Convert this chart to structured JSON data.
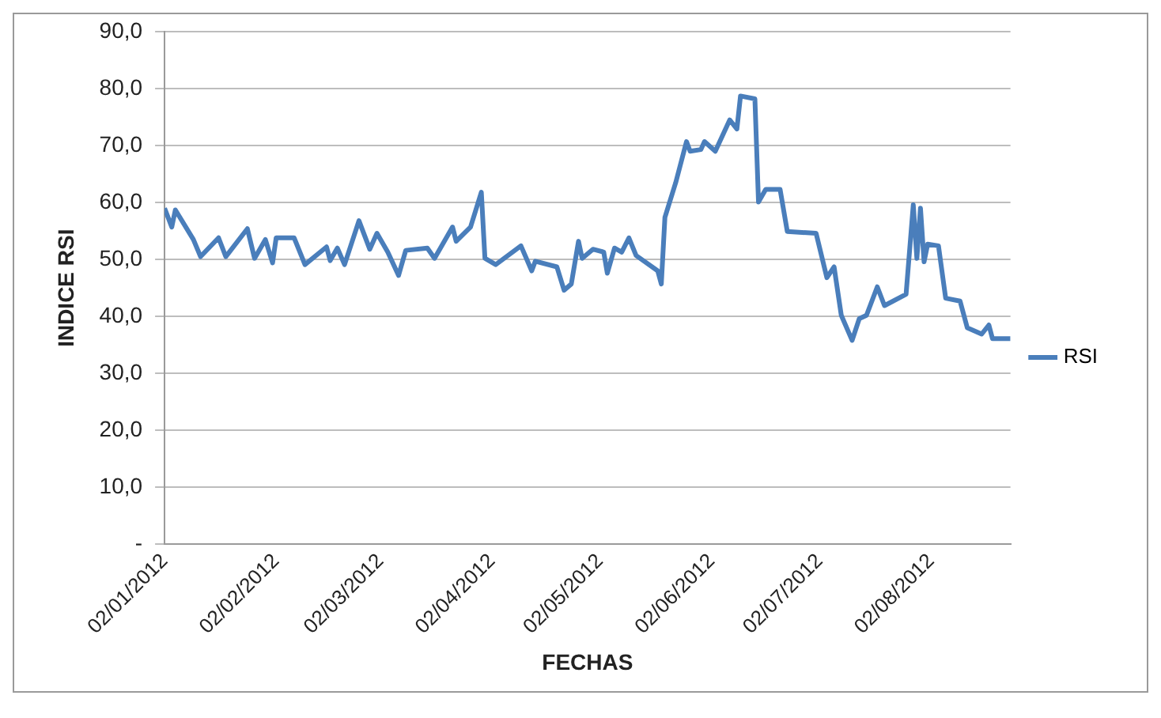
{
  "chart_data": {
    "type": "line",
    "xlabel": "FECHAS",
    "ylabel": "INDICE RSI",
    "x": [
      "2012-01-02",
      "2012-01-04",
      "2012-01-05",
      "2012-01-10",
      "2012-01-12",
      "2012-01-17",
      "2012-01-19",
      "2012-01-25",
      "2012-01-27",
      "2012-01-30",
      "2012-02-01",
      "2012-02-02",
      "2012-02-07",
      "2012-02-10",
      "2012-02-16",
      "2012-02-17",
      "2012-02-19",
      "2012-02-21",
      "2012-02-25",
      "2012-02-28",
      "2012-03-01",
      "2012-03-04",
      "2012-03-07",
      "2012-03-09",
      "2012-03-15",
      "2012-03-17",
      "2012-03-22",
      "2012-03-23",
      "2012-03-27",
      "2012-03-30",
      "2012-03-31",
      "2012-04-03",
      "2012-04-10",
      "2012-04-13",
      "2012-04-14",
      "2012-04-20",
      "2012-04-22",
      "2012-04-24",
      "2012-04-26",
      "2012-04-27",
      "2012-04-30",
      "2012-05-03",
      "2012-05-04",
      "2012-05-06",
      "2012-05-08",
      "2012-05-10",
      "2012-05-12",
      "2012-05-18",
      "2012-05-19",
      "2012-05-20",
      "2012-05-23",
      "2012-05-26",
      "2012-05-27",
      "2012-05-30",
      "2012-05-31",
      "2012-06-03",
      "2012-06-07",
      "2012-06-09",
      "2012-06-10",
      "2012-06-14",
      "2012-06-15",
      "2012-06-17",
      "2012-06-21",
      "2012-06-23",
      "2012-07-01",
      "2012-07-04",
      "2012-07-06",
      "2012-07-08",
      "2012-07-11",
      "2012-07-13",
      "2012-07-15",
      "2012-07-18",
      "2012-07-20",
      "2012-07-26",
      "2012-07-28",
      "2012-07-29",
      "2012-07-30",
      "2012-07-31",
      "2012-08-01",
      "2012-08-04",
      "2012-08-06",
      "2012-08-10",
      "2012-08-12",
      "2012-08-16",
      "2012-08-18",
      "2012-08-19",
      "2012-08-24"
    ],
    "series": [
      {
        "name": "RSI",
        "color": "#4a7ebb",
        "values": [
          59.0,
          55.7,
          58.7,
          53.5,
          50.5,
          53.8,
          50.5,
          55.4,
          50.2,
          53.5,
          49.4,
          53.8,
          53.8,
          49.1,
          52.2,
          49.8,
          52.0,
          49.1,
          56.8,
          51.8,
          54.6,
          51.3,
          47.2,
          51.6,
          52.0,
          50.2,
          55.7,
          53.2,
          55.7,
          61.8,
          50.2,
          49.1,
          52.4,
          48.0,
          49.7,
          48.7,
          44.6,
          45.7,
          53.2,
          50.2,
          51.8,
          51.3,
          47.6,
          52.0,
          51.3,
          53.8,
          50.7,
          48.0,
          45.7,
          57.4,
          63.5,
          70.7,
          69.0,
          69.3,
          70.7,
          69.0,
          74.5,
          72.9,
          78.7,
          78.2,
          60.1,
          62.3,
          62.3,
          54.9,
          54.6,
          46.8,
          48.7,
          40.2,
          35.8,
          39.6,
          40.2,
          45.2,
          41.9,
          43.9,
          59.6,
          50.2,
          59.0,
          49.6,
          52.7,
          52.4,
          43.2,
          42.7,
          38.0,
          36.9,
          38.5,
          36.1,
          36.1
        ]
      }
    ],
    "xlim": [
      "2012-01-02",
      "2012-08-24"
    ],
    "xticks": [
      {
        "value": "2012-01-02",
        "label": "02/01/2012"
      },
      {
        "value": "2012-02-02",
        "label": "02/02/2012"
      },
      {
        "value": "2012-03-02",
        "label": "02/03/2012"
      },
      {
        "value": "2012-04-02",
        "label": "02/04/2012"
      },
      {
        "value": "2012-05-02",
        "label": "02/05/2012"
      },
      {
        "value": "2012-06-02",
        "label": "02/06/2012"
      },
      {
        "value": "2012-07-02",
        "label": "02/07/2012"
      },
      {
        "value": "2012-08-02",
        "label": "02/08/2012"
      }
    ],
    "ylim": [
      0,
      90
    ],
    "yticks": [
      {
        "value": 0,
        "label": "-"
      },
      {
        "value": 10,
        "label": "10,0"
      },
      {
        "value": 20,
        "label": "20,0"
      },
      {
        "value": 30,
        "label": "30,0"
      },
      {
        "value": 40,
        "label": "40,0"
      },
      {
        "value": 50,
        "label": "50,0"
      },
      {
        "value": 60,
        "label": "60,0"
      },
      {
        "value": 70,
        "label": "70,0"
      },
      {
        "value": 80,
        "label": "80,0"
      },
      {
        "value": 90,
        "label": "90,0"
      }
    ],
    "grid": "y",
    "legend": "right",
    "marker": "none",
    "line_style": "solid"
  }
}
